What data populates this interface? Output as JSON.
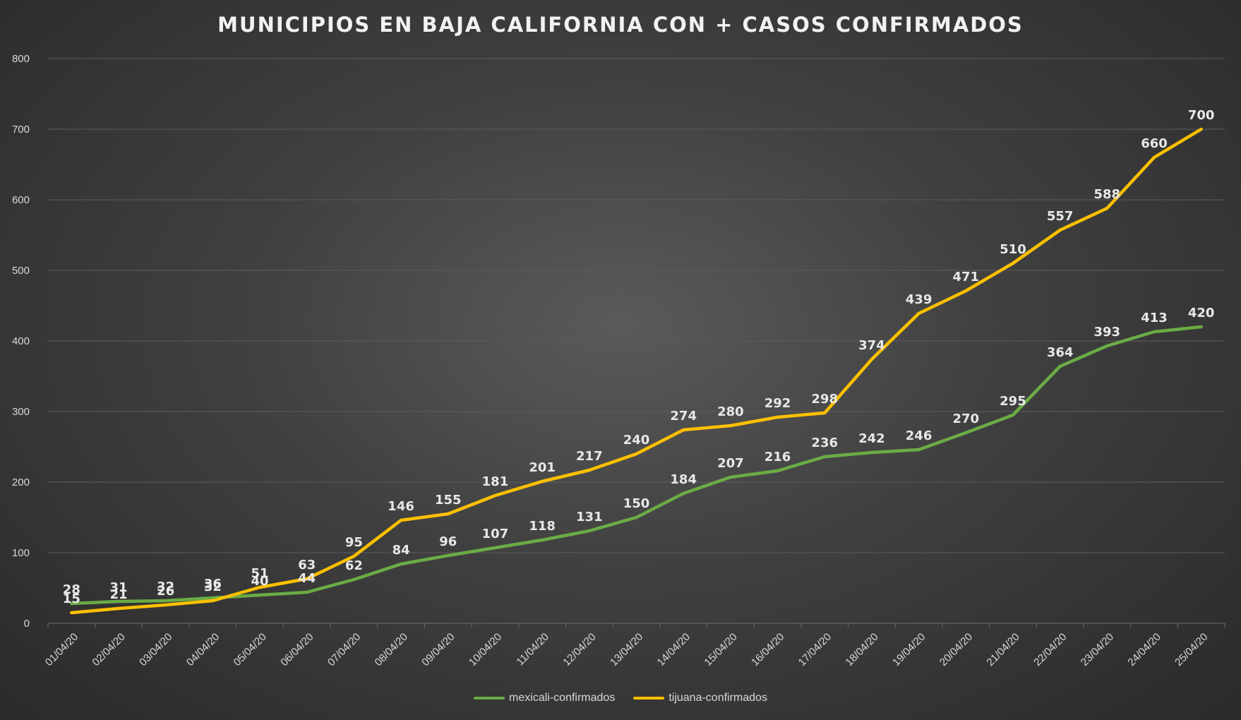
{
  "chart_data": {
    "type": "line",
    "title": "MUNICIPIOS EN BAJA CALIFORNIA CON + CASOS CONFIRMADOS",
    "xlabel": "",
    "ylabel": "",
    "ylim": [
      0,
      800
    ],
    "yticks": [
      "0",
      "100",
      "200",
      "300",
      "400",
      "500",
      "600",
      "700",
      "800"
    ],
    "grid": true,
    "legend_position": "bottom",
    "categories": [
      "01/04/20",
      "02/04/20",
      "03/04/20",
      "04/04/20",
      "05/04/20",
      "06/04/20",
      "07/04/20",
      "08/04/20",
      "09/04/20",
      "10/04/20",
      "11/04/20",
      "12/04/20",
      "13/04/20",
      "14/04/20",
      "15/04/20",
      "16/04/20",
      "17/04/20",
      "18/04/20",
      "19/04/20",
      "20/04/20",
      "21/04/20",
      "22/04/20",
      "23/04/20",
      "24/04/20",
      "25/04/20"
    ],
    "series": [
      {
        "name": "mexicali-confirmados",
        "color": "#6aac46",
        "values": [
          28,
          31,
          32,
          36,
          40,
          44,
          62,
          84,
          96,
          107,
          118,
          131,
          150,
          184,
          207,
          216,
          236,
          242,
          246,
          270,
          295,
          364,
          393,
          413,
          420
        ]
      },
      {
        "name": "tijuana-confirmados",
        "color": "#ffc000",
        "values": [
          15,
          21,
          26,
          32,
          51,
          63,
          95,
          146,
          155,
          181,
          201,
          217,
          240,
          274,
          280,
          292,
          298,
          374,
          439,
          471,
          510,
          557,
          588,
          660,
          700
        ]
      }
    ]
  }
}
